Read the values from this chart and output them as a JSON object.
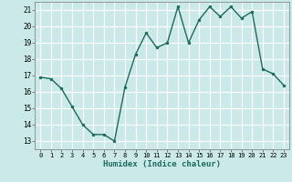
{
  "x": [
    0,
    1,
    2,
    3,
    4,
    5,
    6,
    7,
    8,
    9,
    10,
    11,
    12,
    13,
    14,
    15,
    16,
    17,
    18,
    19,
    20,
    21,
    22,
    23
  ],
  "y": [
    16.9,
    16.8,
    16.2,
    15.1,
    14.0,
    13.4,
    13.4,
    13.0,
    16.3,
    18.3,
    19.6,
    18.7,
    19.0,
    21.2,
    19.0,
    20.4,
    21.2,
    20.6,
    21.2,
    20.5,
    20.9,
    17.4,
    17.1,
    16.4
  ],
  "line_color": "#1a6b5e",
  "marker": "o",
  "marker_size": 2.0,
  "line_width": 1.0,
  "bg_color": "#cce9e9",
  "grid_color": "#ffffff",
  "xlabel": "Humidex (Indice chaleur)",
  "xlim": [
    -0.5,
    23.5
  ],
  "ylim": [
    12.5,
    21.5
  ],
  "yticks": [
    13,
    14,
    15,
    16,
    17,
    18,
    19,
    20,
    21
  ],
  "xticks": [
    0,
    1,
    2,
    3,
    4,
    5,
    6,
    7,
    8,
    9,
    10,
    11,
    12,
    13,
    14,
    15,
    16,
    17,
    18,
    19,
    20,
    21,
    22,
    23
  ]
}
